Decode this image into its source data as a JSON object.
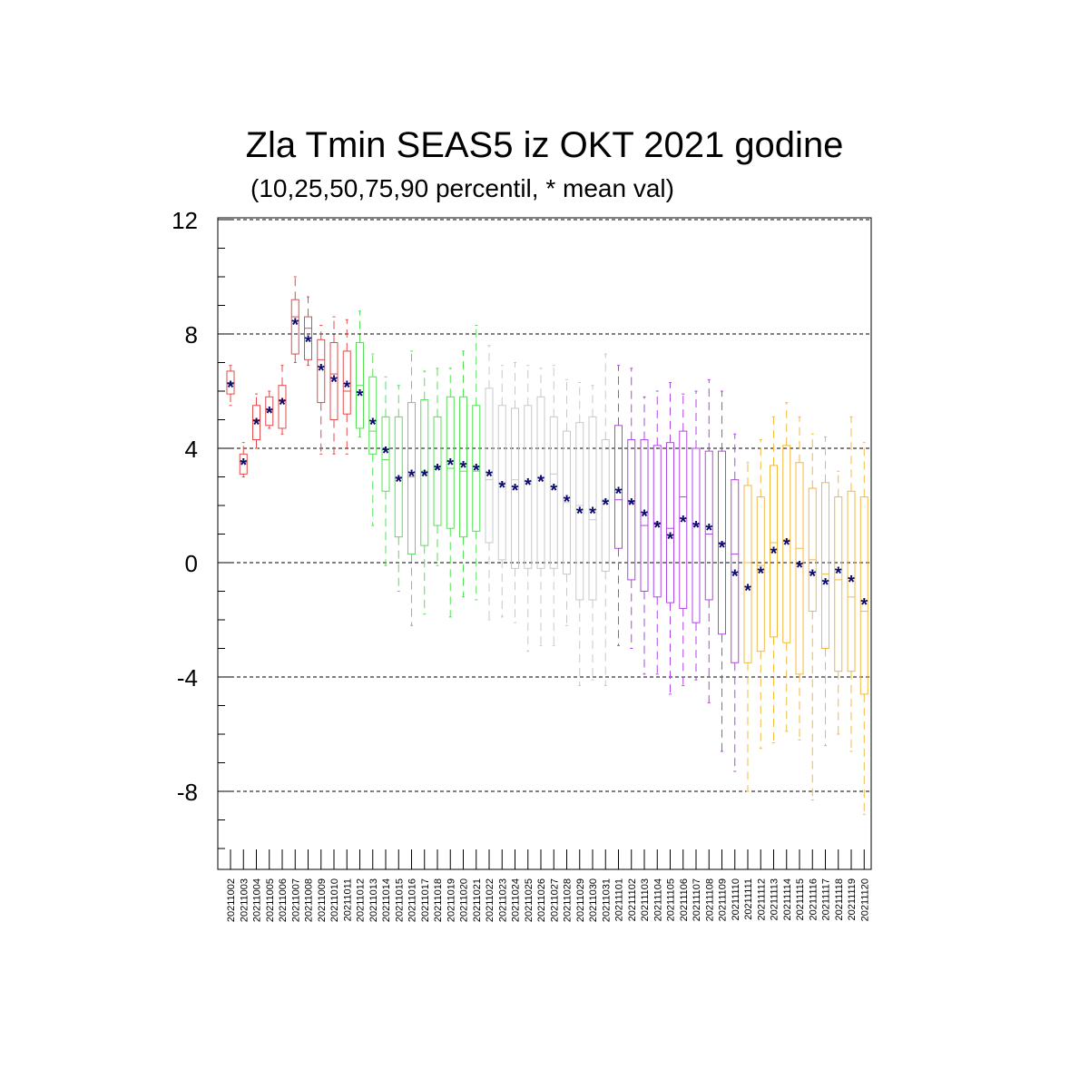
{
  "chart_data": {
    "type": "box",
    "title": "Zla Tmin SEAS5 iz OKT 2021 godine",
    "subtitle": "(10,25,50,75,90 percentil, * mean val)",
    "ylim": [
      -10.5,
      12
    ],
    "yticks": [
      12,
      8,
      4,
      0,
      -4,
      -8
    ],
    "grid": "horizontal dashed at major ticks",
    "month_colors": {
      "October-early": "#e34a4a",
      "October-mid": "#55e055",
      "October-late": "#c8c8c8",
      "November": "#b045e6",
      "November-late": "#f4b83c"
    },
    "categories": [
      "20211002",
      "20211003",
      "20211004",
      "20211005",
      "20211006",
      "20211007",
      "20211008",
      "20211009",
      "20211010",
      "20211011",
      "20211012",
      "20211013",
      "20211014",
      "20211015",
      "20211016",
      "20211017",
      "20211018",
      "20211019",
      "20211020",
      "20211021",
      "20211022",
      "20211023",
      "20211024",
      "20211025",
      "20211026",
      "20211027",
      "20211028",
      "20211029",
      "20211030",
      "20211031",
      "20211101",
      "20211102",
      "20211103",
      "20211104",
      "20211105",
      "20211106",
      "20211107",
      "20211108",
      "20211109",
      "20211110",
      "20211111",
      "20211112",
      "20211113",
      "20211114",
      "20211115",
      "20211116",
      "20211117",
      "20211118",
      "20211119",
      "20211120"
    ],
    "colors": [
      "#e34a4a",
      "#e34a4a",
      "#e34a4a",
      "#e34a4a",
      "#e34a4a",
      "#e34a4a",
      "#e34a4a",
      "#e34a4a",
      "#e34a4a",
      "#e34a4a",
      "#55e055",
      "#55e055",
      "#55e055",
      "#55e055",
      "#55e055",
      "#55e055",
      "#55e055",
      "#55e055",
      "#55e055",
      "#55e055",
      "#c8c8c8",
      "#c8c8c8",
      "#c8c8c8",
      "#c8c8c8",
      "#c8c8c8",
      "#c8c8c8",
      "#c8c8c8",
      "#c8c8c8",
      "#c8c8c8",
      "#c8c8c8",
      "#b045e6",
      "#b045e6",
      "#b045e6",
      "#b045e6",
      "#b045e6",
      "#b045e6",
      "#b045e6",
      "#b045e6",
      "#b045e6",
      "#b045e6",
      "#f4b83c",
      "#f4b83c",
      "#f4b83c",
      "#f4b83c",
      "#f4b83c",
      "#f4b83c",
      "#f4b83c",
      "#f4b83c",
      "#f4b83c",
      "#f4b83c"
    ],
    "p10": [
      5.5,
      3.0,
      4.0,
      4.7,
      4.5,
      7.0,
      6.9,
      3.8,
      3.8,
      3.8,
      4.4,
      1.3,
      -0.1,
      -1.0,
      -2.2,
      -1.8,
      -0.1,
      -1.9,
      -1.2,
      -1.3,
      -2.0,
      -1.9,
      -2.1,
      -3.1,
      -2.9,
      -2.9,
      -2.2,
      -4.3,
      -4.1,
      -4.3,
      -2.9,
      -3.0,
      -3.9,
      -3.9,
      -4.6,
      -4.3,
      -4.1,
      -4.9,
      -6.6,
      -7.3,
      -8.0,
      -6.5,
      -6.3,
      -5.9,
      -6.2,
      -8.3,
      -6.4,
      -6.0,
      -6.6,
      -8.8
    ],
    "p25": [
      5.9,
      3.1,
      4.3,
      4.8,
      4.7,
      7.3,
      7.1,
      5.6,
      5.0,
      5.2,
      4.7,
      3.8,
      2.5,
      0.9,
      0.3,
      0.6,
      1.3,
      1.2,
      0.9,
      1.1,
      0.7,
      0.1,
      -0.2,
      -0.2,
      -0.2,
      -0.2,
      -0.4,
      -1.3,
      -1.3,
      -0.3,
      0.5,
      -0.6,
      -1.0,
      -1.2,
      -1.4,
      -1.6,
      -2.1,
      -1.3,
      -2.5,
      -3.5,
      -3.5,
      -3.1,
      -2.6,
      -2.8,
      -3.9,
      -1.7,
      -3.0,
      -3.8,
      -3.8,
      -4.6
    ],
    "p50": [
      6.3,
      3.5,
      5.0,
      5.3,
      5.7,
      8.6,
      8.2,
      7.1,
      6.6,
      6.0,
      6.2,
      4.6,
      3.6,
      3.0,
      3.0,
      3.2,
      3.3,
      3.3,
      3.2,
      3.2,
      2.9,
      2.8,
      2.9,
      2.8,
      3.0,
      3.1,
      2.1,
      2.0,
      1.5,
      2.2,
      2.2,
      2.1,
      1.3,
      1.4,
      1.2,
      2.3,
      1.3,
      1.0,
      0.7,
      0.3,
      0.0,
      -0.1,
      0.7,
      0.8,
      0.5,
      0.1,
      -0.4,
      -0.6,
      -1.2,
      -1.7
    ],
    "p75": [
      6.7,
      3.8,
      5.5,
      5.8,
      6.2,
      9.2,
      8.6,
      7.8,
      7.7,
      7.4,
      7.7,
      6.5,
      5.1,
      5.1,
      5.6,
      5.7,
      5.1,
      5.8,
      5.8,
      5.5,
      6.1,
      5.5,
      5.4,
      5.5,
      5.8,
      5.1,
      4.6,
      4.9,
      5.1,
      4.3,
      4.8,
      4.3,
      4.3,
      4.1,
      4.2,
      4.6,
      4.0,
      3.9,
      3.9,
      2.9,
      2.7,
      2.3,
      3.4,
      4.1,
      3.5,
      2.6,
      2.8,
      2.3,
      2.5,
      2.3
    ],
    "p90": [
      6.9,
      4.2,
      5.9,
      6.0,
      6.9,
      10.0,
      9.3,
      8.3,
      8.6,
      8.5,
      8.8,
      7.3,
      6.5,
      6.2,
      7.4,
      6.7,
      6.8,
      6.8,
      7.4,
      8.3,
      7.6,
      6.9,
      7.0,
      6.9,
      6.8,
      6.9,
      6.4,
      6.3,
      6.2,
      7.3,
      6.9,
      6.8,
      5.8,
      6.0,
      6.3,
      5.9,
      6.0,
      6.4,
      6.0,
      4.5,
      3.5,
      4.3,
      5.1,
      5.6,
      5.1,
      4.5,
      4.4,
      3.2,
      5.1,
      4.2
    ],
    "mean": [
      6.2,
      3.5,
      4.9,
      5.3,
      5.6,
      8.4,
      7.8,
      6.8,
      6.4,
      6.2,
      5.9,
      4.9,
      3.9,
      2.9,
      3.1,
      3.1,
      3.3,
      3.5,
      3.4,
      3.3,
      3.1,
      2.7,
      2.6,
      2.8,
      2.9,
      2.6,
      2.2,
      1.8,
      1.8,
      2.1,
      2.5,
      2.1,
      1.7,
      1.3,
      0.9,
      1.5,
      1.3,
      1.2,
      0.6,
      -0.4,
      -0.9,
      -0.3,
      0.4,
      0.7,
      -0.1,
      -0.4,
      -0.7,
      -0.3,
      -0.6,
      -1.4
    ]
  }
}
